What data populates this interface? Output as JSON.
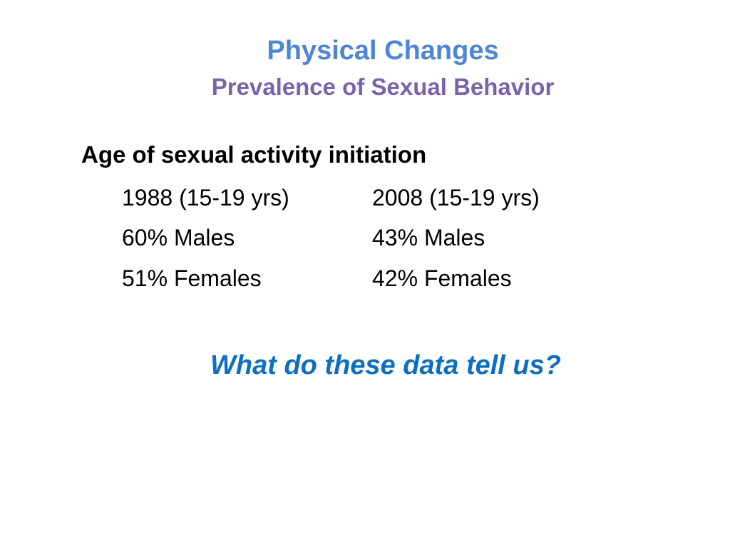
{
  "slide": {
    "title": "Physical Changes",
    "subtitle": "Prevalence of Sexual Behavior",
    "heading": "Age of sexual activity initiation",
    "table": {
      "columns": [
        {
          "header": "1988 (15-19 yrs)",
          "rows": [
            "60% Males",
            "51% Females"
          ]
        },
        {
          "header": "2008 (15-19 yrs)",
          "rows": [
            "43% Males",
            "42% Females"
          ]
        }
      ]
    },
    "question": "What do these data tell us?"
  },
  "colors": {
    "title": "#4f86d4",
    "subtitle": "#7b62aa",
    "body_text": "#000000",
    "question": "#0e6ebf",
    "background": "#ffffff"
  }
}
